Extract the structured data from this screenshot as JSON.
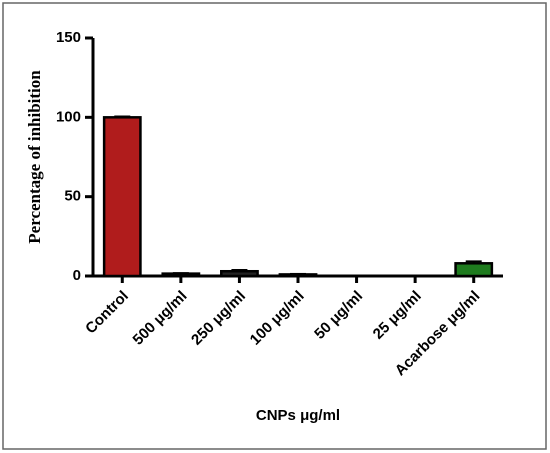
{
  "chart_data": {
    "type": "bar",
    "categories": [
      "Control",
      "500 μg/ml",
      "250 μg/ml",
      "100 μg/ml",
      "50 μg/ml",
      "25 μg/ml",
      "Acarbose μg/ml"
    ],
    "values": [
      100,
      1.5,
      3,
      1,
      0,
      0,
      8
    ],
    "errors": [
      0.5,
      0.3,
      0.8,
      0.3,
      0,
      0,
      1.2
    ],
    "colors": [
      "#b01c1c",
      "#222222",
      "#222222",
      "#222222",
      "#222222",
      "#222222",
      "#1e7b1e"
    ],
    "xlabel": "CNPs μg/ml",
    "ylabel": "Percentage of inhibition",
    "ylim": [
      0,
      150
    ],
    "yticks": [
      0,
      50,
      100,
      150
    ]
  }
}
